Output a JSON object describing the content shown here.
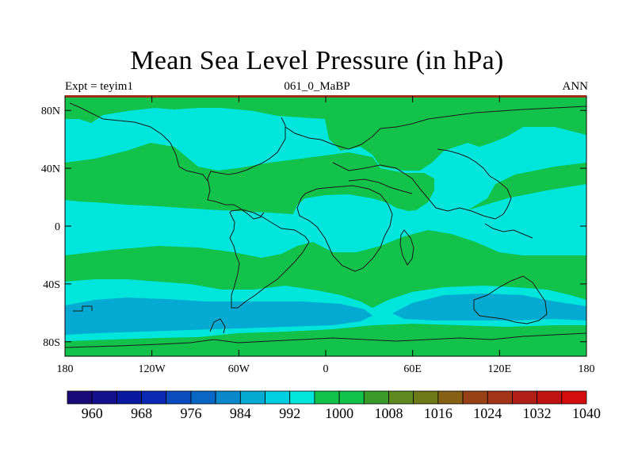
{
  "title": "Mean Sea Level Pressure (in hPa)",
  "subtitle_left": "Expt = teyim1",
  "subtitle_center": "061_0_MaBP",
  "subtitle_right": "ANN",
  "colors": {
    "band_996_1004": "#00e5dc",
    "band_1004_1012": "#12c24a",
    "band_988_996": "#05aad2",
    "coastline": "#1a1a1a",
    "frame_top_edge": "#a0301a"
  },
  "map": {
    "lon_range": [
      -180,
      180
    ],
    "lat_range": [
      -90,
      90
    ],
    "lon_ticks": [
      "180",
      "120W",
      "60W",
      "0",
      "60E",
      "120E",
      "180"
    ],
    "lat_ticks": [
      "80N",
      "40N",
      "0",
      "40S",
      "80S"
    ]
  },
  "colorbar": {
    "labels": [
      "960",
      "968",
      "976",
      "984",
      "992",
      "1000",
      "1008",
      "1016",
      "1024",
      "1032",
      "1040"
    ],
    "colors": [
      "#1a0a78",
      "#14108e",
      "#0a1aa0",
      "#0a2ab4",
      "#0a4cc0",
      "#0866c4",
      "#0a88cc",
      "#05aad2",
      "#00cfe0",
      "#00e5dc",
      "#12c24a",
      "#12c24a",
      "#3a9a2a",
      "#5e8a20",
      "#6e7a18",
      "#866014",
      "#984016",
      "#a43418",
      "#b02018",
      "#c01414",
      "#d40c0c"
    ]
  }
}
